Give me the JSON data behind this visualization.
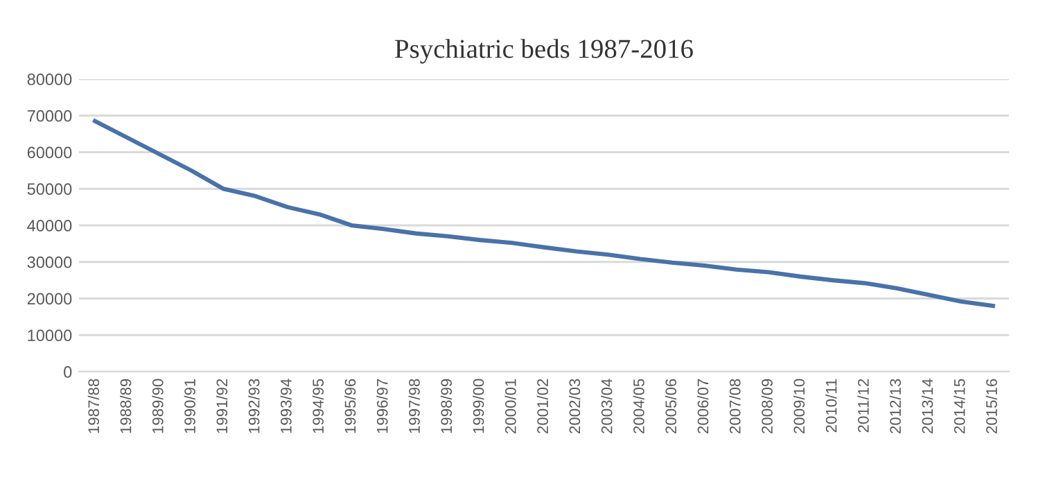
{
  "chart_data": {
    "type": "line",
    "title": "Psychiatric beds 1987-2016",
    "categories": [
      "1987/88",
      "1988/89",
      "1989/90",
      "1990/91",
      "1991/92",
      "1992/93",
      "1993/94",
      "1994/95",
      "1995/96",
      "1996/97",
      "1997/98",
      "1998/99",
      "1999/00",
      "2000/01",
      "2001/02",
      "2002/03",
      "2003/04",
      "2004/05",
      "2005/06",
      "2006/07",
      "2007/08",
      "2008/09",
      "2009/10",
      "2010/11",
      "2011/12",
      "2012/13",
      "2013/14",
      "2014/15",
      "2015/16"
    ],
    "series": [
      {
        "color": "#4a72a8",
        "values": [
          68500,
          64000,
          59500,
          55000,
          50000,
          48000,
          45000,
          43000,
          40000,
          39000,
          37800,
          37000,
          36000,
          35200,
          34000,
          32900,
          32000,
          30800,
          29800,
          29000,
          27900,
          27200,
          26000,
          25000,
          24200,
          22800,
          21000,
          19200,
          18000
        ]
      }
    ],
    "ylim": [
      0,
      80000
    ],
    "yticks": [
      0,
      10000,
      20000,
      30000,
      40000,
      50000,
      60000,
      70000,
      80000
    ],
    "grid": "y",
    "legend": false,
    "marker": "none",
    "line_style": "solid"
  }
}
